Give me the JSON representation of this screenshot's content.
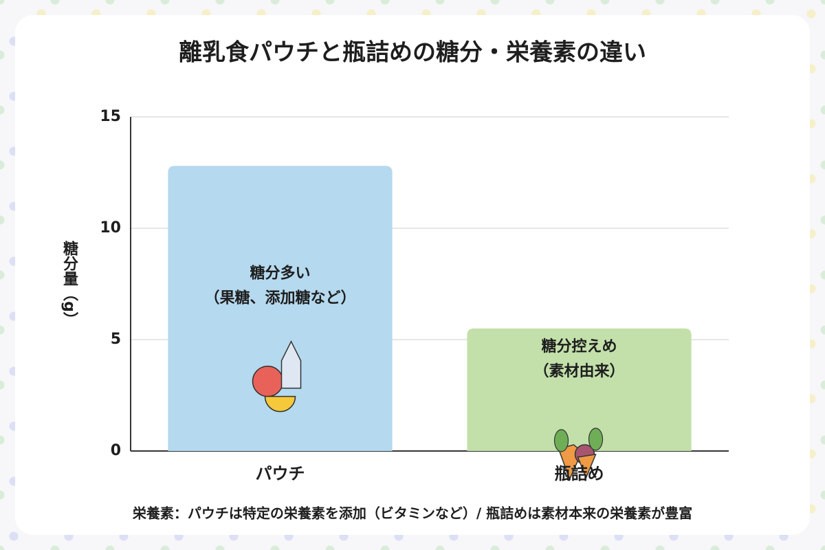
{
  "chart_data": {
    "type": "bar",
    "title": "離乳食パウチと瓶詰めの糖分・栄養素の違い",
    "y_label": "糖分量（g）",
    "categories": [
      "パウチ",
      "瓶詰め"
    ],
    "values": [
      12.8,
      5.5
    ],
    "colors": [
      "#b5d9ee",
      "#c3e0ab"
    ],
    "bar_labels": [
      [
        "糖分多い",
        "（果糖、添加糖など）"
      ],
      [
        "糖分控えめ",
        "（素材由来）"
      ]
    ],
    "ylim": [
      0,
      15
    ],
    "yticks": [
      0,
      5,
      10,
      15
    ],
    "grid": true,
    "note": "栄養素：パウチは特定の栄養素を添加（ビタミンなど）/ 瓶詰めは素材本来の栄養素が豊富"
  }
}
